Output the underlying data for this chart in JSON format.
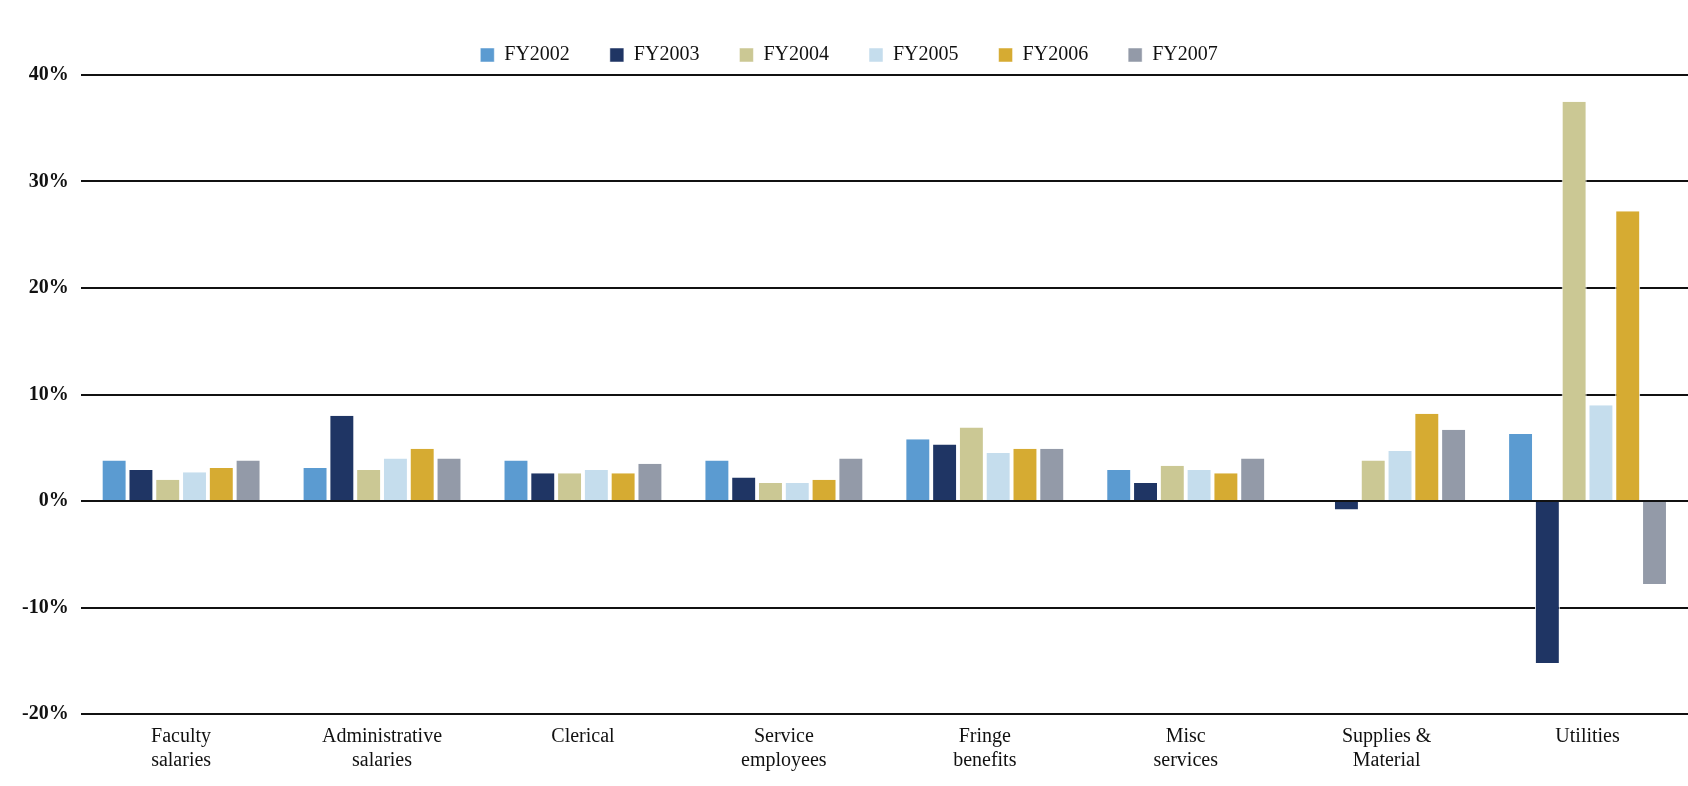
{
  "chart_data": {
    "type": "bar",
    "categories": [
      "Faculty salaries",
      "Administrative salaries",
      "Clerical",
      "Service employees",
      "Fringe benefits",
      "Misc services",
      "Supplies & Material",
      "Utilities"
    ],
    "series": [
      {
        "name": "FY2002",
        "color": "#5b9bd1",
        "values": [
          3.8,
          3.1,
          3.8,
          3.8,
          5.8,
          2.9,
          null,
          6.3
        ]
      },
      {
        "name": "FY2003",
        "color": "#1f3564",
        "values": [
          2.9,
          8.0,
          2.6,
          2.2,
          5.3,
          1.7,
          -0.8,
          -15.2
        ]
      },
      {
        "name": "FY2004",
        "color": "#cbc894",
        "values": [
          2.0,
          2.9,
          2.6,
          1.7,
          6.9,
          3.3,
          3.8,
          37.5
        ]
      },
      {
        "name": "FY2005",
        "color": "#c5dded",
        "values": [
          2.7,
          4.0,
          2.9,
          1.7,
          4.5,
          2.9,
          4.7,
          9.0
        ]
      },
      {
        "name": "FY2006",
        "color": "#d6ab32",
        "values": [
          3.1,
          4.9,
          2.6,
          2.0,
          4.9,
          2.6,
          8.2,
          27.2
        ]
      },
      {
        "name": "FY2007",
        "color": "#939aa8",
        "values": [
          3.8,
          4.0,
          3.5,
          4.0,
          4.9,
          4.0,
          6.7,
          -7.8
        ]
      }
    ],
    "ylim": [
      -20,
      40
    ],
    "yticks": [
      {
        "value": -20,
        "label": "-20%"
      },
      {
        "value": -10,
        "label": "-10%"
      },
      {
        "value": 0,
        "label": "0%"
      },
      {
        "value": 10,
        "label": "10%"
      },
      {
        "value": 20,
        "label": "20%"
      },
      {
        "value": 30,
        "label": "30%"
      },
      {
        "value": 40,
        "label": "40%"
      }
    ],
    "grid": "y",
    "legend": "top"
  }
}
